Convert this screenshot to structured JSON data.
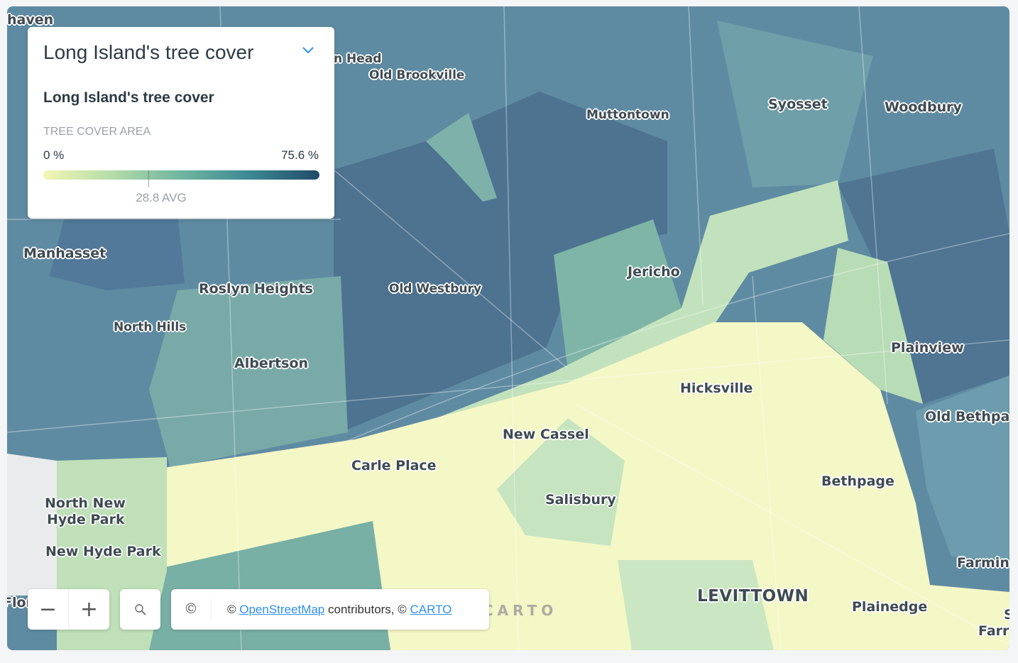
{
  "legend": {
    "header_title": "Long Island's tree cover",
    "layer_title": "Long Island's tree cover",
    "attribute": "TREE COVER AREA",
    "min_label": "0 %",
    "max_label": "75.6 %",
    "avg_label": "28.8 AVG",
    "min_value": 0,
    "max_value": 75.6,
    "avg_value": 28.8,
    "ramp_colors": [
      "#f3f6b4",
      "#b4dca9",
      "#6fb5a0",
      "#3d8893",
      "#1f4a69"
    ],
    "collapse_icon": "chevron-down-icon"
  },
  "controls": {
    "zoom_out": "−",
    "zoom_in": "+",
    "search_icon": "search-icon",
    "attribution_toggle": "©",
    "attribution_prefix": "© ",
    "osm_link": "OpenStreetMap",
    "attribution_middle": " contributors, © ",
    "carto_link": "CARTO"
  },
  "watermark": "CARTO",
  "places": [
    "haven",
    "n Head",
    "Old Brookville",
    "Muttontown",
    "Syosset",
    "Woodbury",
    "Manhasset",
    "Jericho",
    "Roslyn Heights",
    "Old Westbury",
    "North Hills",
    "Plainview",
    "Albertson",
    "Hicksville",
    "Old Bethpa",
    "New Cassel",
    "Carle Place",
    "Bethpage",
    "North New",
    "Hyde Park",
    "Salisbury",
    "New Hyde Park",
    "Farmin",
    "LEVITTOWN",
    "Plainedge",
    "Farr",
    "S",
    "Flor"
  ]
}
